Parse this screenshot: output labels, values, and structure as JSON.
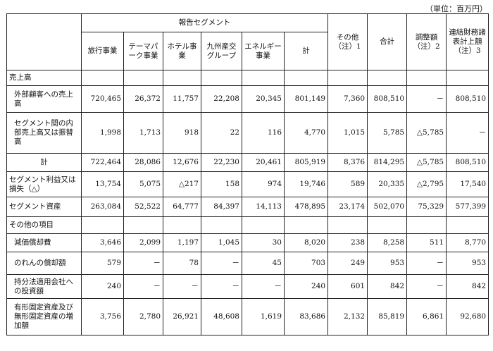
{
  "unit_note": "（単位：百万円）",
  "header": {
    "group_label": "報告セグメント",
    "segments": [
      "旅行事業",
      "テーマパーク事業",
      "ホテル事業",
      "九州産交グループ",
      "エネルギー事業"
    ],
    "subtotal": "計",
    "other": "その他（注）1",
    "total": "合計",
    "adjustment": "調整額（注）2",
    "consolidated": "連結財務諸表計上額（注）3"
  },
  "sections": {
    "sales": "売上高",
    "other_items": "その他の項目"
  },
  "rows": [
    {
      "label": "外部顧客への売上高",
      "values": [
        "720,465",
        "26,372",
        "11,757",
        "22,208",
        "20,345",
        "801,149",
        "7,360",
        "808,510",
        "－",
        "808,510"
      ]
    },
    {
      "label": "セグメント間の内部売上高又は振替高",
      "values": [
        "1,998",
        "1,713",
        "918",
        "22",
        "116",
        "4,770",
        "1,015",
        "5,785",
        "△5,785",
        "－"
      ]
    },
    {
      "label": "計",
      "values": [
        "722,464",
        "28,086",
        "12,676",
        "22,230",
        "20,461",
        "805,919",
        "8,376",
        "814,295",
        "△5,785",
        "808,510"
      ]
    },
    {
      "label": "セグメント利益又は損失（△）",
      "values": [
        "13,754",
        "5,075",
        "△217",
        "158",
        "974",
        "19,746",
        "589",
        "20,335",
        "△2,795",
        "17,540"
      ]
    },
    {
      "label": "セグメント資産",
      "values": [
        "263,084",
        "52,522",
        "64,777",
        "84,397",
        "14,113",
        "478,895",
        "23,174",
        "502,070",
        "75,329",
        "577,399"
      ]
    },
    {
      "label": "減価償却費",
      "values": [
        "3,646",
        "2,099",
        "1,197",
        "1,045",
        "30",
        "8,020",
        "238",
        "8,258",
        "511",
        "8,770"
      ]
    },
    {
      "label": "のれんの償却額",
      "values": [
        "579",
        "－",
        "78",
        "－",
        "45",
        "703",
        "249",
        "953",
        "－",
        "953"
      ]
    },
    {
      "label": "持分法適用会社への投資額",
      "values": [
        "240",
        "－",
        "－",
        "－",
        "－",
        "240",
        "601",
        "842",
        "－",
        "842"
      ]
    },
    {
      "label": "有形固定資産及び無形固定資産の増加額",
      "values": [
        "3,756",
        "2,780",
        "26,921",
        "48,608",
        "1,619",
        "83,686",
        "2,132",
        "85,819",
        "6,861",
        "92,680"
      ]
    }
  ]
}
